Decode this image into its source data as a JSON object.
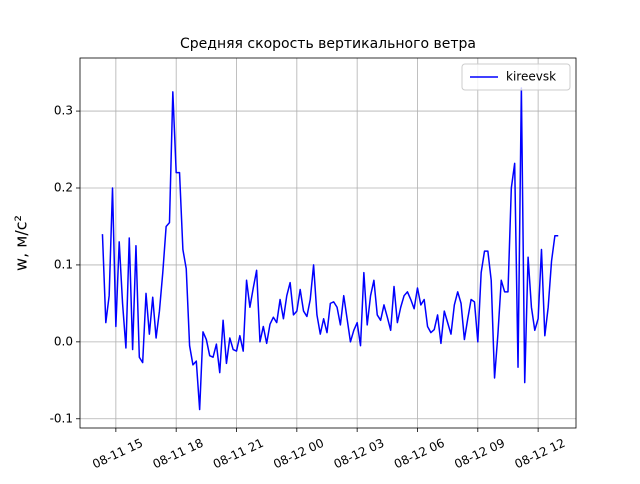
{
  "chart_data": {
    "type": "line",
    "title": "Средняя скорость вертикального ветра",
    "ylabel": "w, м/с²",
    "x": [
      "08-11 14:20",
      "08-11 14:30",
      "08-11 14:40",
      "08-11 14:50",
      "08-11 15:00",
      "08-11 15:10",
      "08-11 15:20",
      "08-11 15:30",
      "08-11 15:40",
      "08-11 15:50",
      "08-11 16:00",
      "08-11 16:10",
      "08-11 16:20",
      "08-11 16:30",
      "08-11 16:40",
      "08-11 16:50",
      "08-11 17:00",
      "08-11 17:10",
      "08-11 17:20",
      "08-11 17:30",
      "08-11 17:40",
      "08-11 17:50",
      "08-11 18:00",
      "08-11 18:10",
      "08-11 18:20",
      "08-11 18:30",
      "08-11 18:40",
      "08-11 18:50",
      "08-11 19:00",
      "08-11 19:10",
      "08-11 19:20",
      "08-11 19:30",
      "08-11 19:40",
      "08-11 19:50",
      "08-11 20:00",
      "08-11 20:10",
      "08-11 20:20",
      "08-11 20:30",
      "08-11 20:40",
      "08-11 20:50",
      "08-11 21:00",
      "08-11 21:10",
      "08-11 21:20",
      "08-11 21:30",
      "08-11 21:40",
      "08-11 21:50",
      "08-11 22:00",
      "08-11 22:10",
      "08-11 22:20",
      "08-11 22:30",
      "08-11 22:40",
      "08-11 22:50",
      "08-11 23:00",
      "08-11 23:10",
      "08-11 23:20",
      "08-11 23:30",
      "08-11 23:40",
      "08-11 23:50",
      "08-12 00:00",
      "08-12 00:10",
      "08-12 00:20",
      "08-12 00:30",
      "08-12 00:40",
      "08-12 00:50",
      "08-12 01:00",
      "08-12 01:10",
      "08-12 01:20",
      "08-12 01:30",
      "08-12 01:40",
      "08-12 01:50",
      "08-12 02:00",
      "08-12 02:10",
      "08-12 02:20",
      "08-12 02:30",
      "08-12 02:40",
      "08-12 02:50",
      "08-12 03:00",
      "08-12 03:10",
      "08-12 03:20",
      "08-12 03:30",
      "08-12 03:40",
      "08-12 03:50",
      "08-12 04:00",
      "08-12 04:10",
      "08-12 04:20",
      "08-12 04:30",
      "08-12 04:40",
      "08-12 04:50",
      "08-12 05:00",
      "08-12 05:10",
      "08-12 05:20",
      "08-12 05:30",
      "08-12 05:40",
      "08-12 05:50",
      "08-12 06:00",
      "08-12 06:10",
      "08-12 06:20",
      "08-12 06:30",
      "08-12 06:40",
      "08-12 06:50",
      "08-12 07:00",
      "08-12 07:10",
      "08-12 07:20",
      "08-12 07:30",
      "08-12 07:40",
      "08-12 07:50",
      "08-12 08:00",
      "08-12 08:10",
      "08-12 08:20",
      "08-12 08:30",
      "08-12 08:40",
      "08-12 08:50",
      "08-12 09:00",
      "08-12 09:10",
      "08-12 09:20",
      "08-12 09:30",
      "08-12 09:40",
      "08-12 09:50",
      "08-12 10:00",
      "08-12 10:10",
      "08-12 10:20",
      "08-12 10:30",
      "08-12 10:40",
      "08-12 10:50",
      "08-12 11:00",
      "08-12 11:10",
      "08-12 11:20",
      "08-12 11:30",
      "08-12 11:40",
      "08-12 11:50",
      "08-12 12:00",
      "08-12 12:10",
      "08-12 12:20",
      "08-12 12:30",
      "08-12 12:40",
      "08-12 12:50",
      "08-12 13:00"
    ],
    "series": [
      {
        "name": "kireevsk",
        "color": "#0000ff",
        "values": [
          0.14,
          0.025,
          0.06,
          0.2,
          0.02,
          0.13,
          0.05,
          -0.008,
          0.135,
          -0.01,
          0.125,
          -0.02,
          -0.027,
          0.063,
          0.01,
          0.058,
          0.005,
          0.04,
          0.09,
          0.15,
          0.155,
          0.325,
          0.22,
          0.22,
          0.12,
          0.095,
          -0.005,
          -0.03,
          -0.025,
          -0.088,
          0.013,
          0.003,
          -0.018,
          -0.02,
          -0.003,
          -0.04,
          0.028,
          -0.028,
          0.005,
          -0.01,
          -0.012,
          0.008,
          -0.012,
          0.08,
          0.045,
          0.07,
          0.093,
          0.0,
          0.02,
          -0.002,
          0.023,
          0.032,
          0.025,
          0.055,
          0.03,
          0.06,
          0.077,
          0.035,
          0.04,
          0.068,
          0.04,
          0.033,
          0.055,
          0.1,
          0.035,
          0.01,
          0.03,
          0.012,
          0.05,
          0.052,
          0.045,
          0.022,
          0.06,
          0.03,
          0.0,
          0.015,
          0.025,
          -0.005,
          0.09,
          0.022,
          0.06,
          0.08,
          0.035,
          0.028,
          0.048,
          0.032,
          0.015,
          0.072,
          0.025,
          0.045,
          0.06,
          0.065,
          0.055,
          0.043,
          0.07,
          0.048,
          0.055,
          0.02,
          0.012,
          0.016,
          0.035,
          -0.002,
          0.04,
          0.025,
          0.01,
          0.048,
          0.065,
          0.05,
          0.003,
          0.03,
          0.055,
          0.052,
          0.0,
          0.09,
          0.118,
          0.118,
          0.08,
          -0.047,
          0.01,
          0.08,
          0.065,
          0.065,
          0.2,
          0.232,
          -0.033,
          0.33,
          -0.053,
          0.11,
          0.045,
          0.015,
          0.03,
          0.12,
          0.008,
          0.045,
          0.105,
          0.138,
          0.138
        ]
      }
    ],
    "xlim": [
      "08-11 13:13",
      "08-12 13:53"
    ],
    "xticks": [
      "08-11 15",
      "08-11 18",
      "08-11 21",
      "08-12 00",
      "08-12 03",
      "08-12 06",
      "08-12 09",
      "08-12 12"
    ],
    "ylim": [
      -0.112,
      0.369
    ],
    "yticks": [
      -0.1,
      {
        "value": 0,
        "label": "0.0"
      },
      0.1,
      0.2,
      0.3
    ],
    "grid": true,
    "legend": "upper right"
  }
}
